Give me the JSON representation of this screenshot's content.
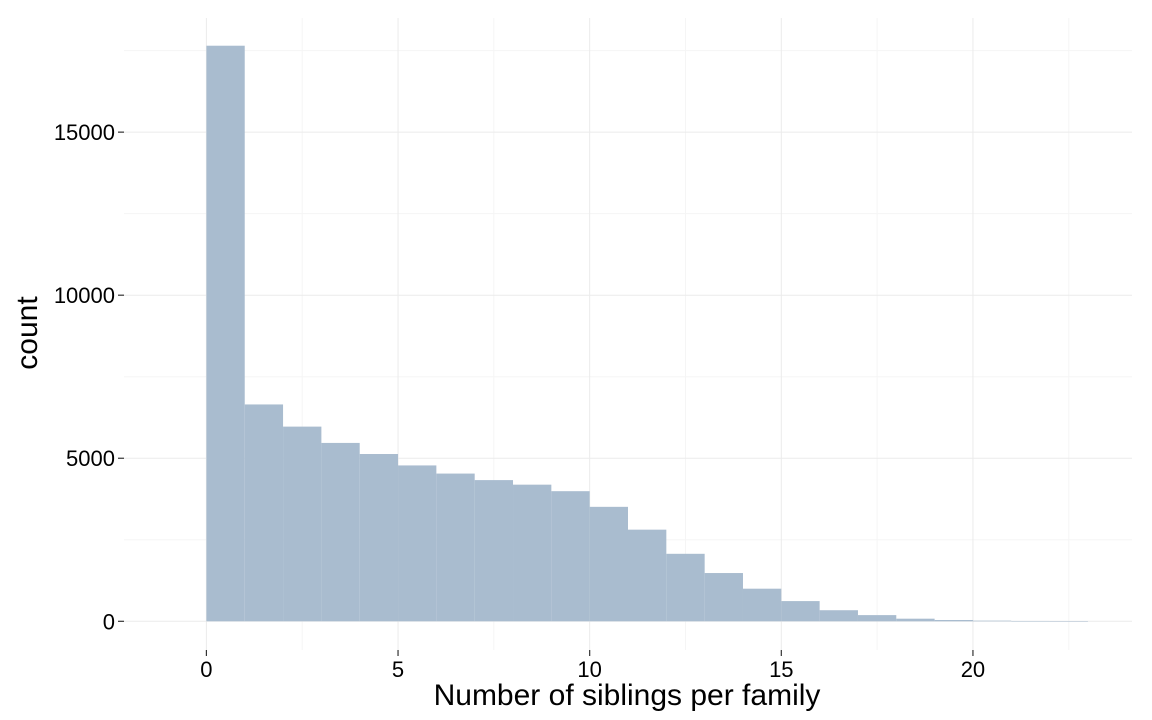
{
  "chart_data": {
    "type": "bar",
    "subtype": "histogram",
    "title": "",
    "xlabel": "Number of siblings per family",
    "ylabel": "count",
    "bin_width": 1,
    "bins": [
      {
        "x0": 0,
        "x1": 1,
        "count": 17650
      },
      {
        "x0": 1,
        "x1": 2,
        "count": 6650
      },
      {
        "x0": 2,
        "x1": 3,
        "count": 5970
      },
      {
        "x0": 3,
        "x1": 4,
        "count": 5470
      },
      {
        "x0": 4,
        "x1": 5,
        "count": 5130
      },
      {
        "x0": 5,
        "x1": 6,
        "count": 4780
      },
      {
        "x0": 6,
        "x1": 7,
        "count": 4530
      },
      {
        "x0": 7,
        "x1": 8,
        "count": 4330
      },
      {
        "x0": 8,
        "x1": 9,
        "count": 4190
      },
      {
        "x0": 9,
        "x1": 10,
        "count": 3990
      },
      {
        "x0": 10,
        "x1": 11,
        "count": 3510
      },
      {
        "x0": 11,
        "x1": 12,
        "count": 2810
      },
      {
        "x0": 12,
        "x1": 13,
        "count": 2070
      },
      {
        "x0": 13,
        "x1": 14,
        "count": 1480
      },
      {
        "x0": 14,
        "x1": 15,
        "count": 1000
      },
      {
        "x0": 15,
        "x1": 16,
        "count": 620
      },
      {
        "x0": 16,
        "x1": 17,
        "count": 340
      },
      {
        "x0": 17,
        "x1": 18,
        "count": 190
      },
      {
        "x0": 18,
        "x1": 19,
        "count": 80
      },
      {
        "x0": 19,
        "x1": 20,
        "count": 40
      },
      {
        "x0": 20,
        "x1": 21,
        "count": 20
      },
      {
        "x0": 21,
        "x1": 22,
        "count": 10
      },
      {
        "x0": 22,
        "x1": 23,
        "count": 5
      }
    ],
    "xlim": [
      -2.15,
      24.15
    ],
    "ylim": [
      -880,
      18500
    ],
    "x_ticks": [
      0,
      5,
      10,
      15,
      20
    ],
    "x_tick_labels": [
      "0",
      "5",
      "10",
      "15",
      "20"
    ],
    "y_ticks": [
      0,
      5000,
      10000,
      15000
    ],
    "y_tick_labels": [
      "0",
      "5000",
      "10000",
      "15000"
    ],
    "grid": true,
    "legend": "none",
    "colors": {
      "bar": "#a9bccf",
      "grid_major": "#ebebeb",
      "grid_minor": "#f5f5f5"
    }
  }
}
